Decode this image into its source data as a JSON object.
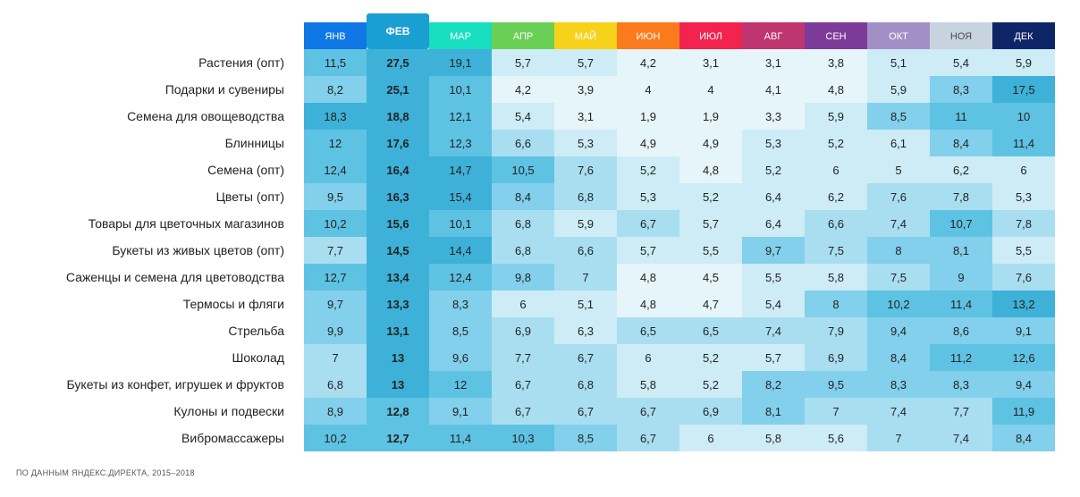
{
  "chart_data": {
    "type": "heatmap",
    "columns": [
      {
        "label": "ЯНВ",
        "color": "#0f77e6"
      },
      {
        "label": "ФЕВ",
        "color": "#1a9fd2",
        "highlight": true
      },
      {
        "label": "МАР",
        "color": "#17dfc0"
      },
      {
        "label": "АПР",
        "color": "#6ccf55"
      },
      {
        "label": "МАЙ",
        "color": "#f7d21a"
      },
      {
        "label": "ИЮН",
        "color": "#fb7a1b"
      },
      {
        "label": "ИЮЛ",
        "color": "#f2234f"
      },
      {
        "label": "АВГ",
        "color": "#bf356f"
      },
      {
        "label": "СЕН",
        "color": "#7d3b99"
      },
      {
        "label": "ОКТ",
        "color": "#a28fc6"
      },
      {
        "label": "НОЯ",
        "color": "#c7d3df",
        "dark_text": true
      },
      {
        "label": "ДЕК",
        "color": "#0e2568"
      }
    ],
    "rows": [
      {
        "label": "Растения (опт)",
        "values": [
          "11,5",
          "27,5",
          "19,1",
          "5,7",
          "5,7",
          "4,2",
          "3,1",
          "3,1",
          "3,8",
          "5,1",
          "5,4",
          "5,9"
        ]
      },
      {
        "label": "Подарки и сувениры",
        "values": [
          "8,2",
          "25,1",
          "10,1",
          "4,2",
          "3,9",
          "4",
          "4",
          "4,1",
          "4,8",
          "5,9",
          "8,3",
          "17,5"
        ]
      },
      {
        "label": "Семена для овощеводства",
        "values": [
          "18,3",
          "18,8",
          "12,1",
          "5,4",
          "3,1",
          "1,9",
          "1,9",
          "3,3",
          "5,9",
          "8,5",
          "11",
          "10"
        ]
      },
      {
        "label": "Блинницы",
        "values": [
          "12",
          "17,6",
          "12,3",
          "6,6",
          "5,3",
          "4,9",
          "4,9",
          "5,3",
          "5,2",
          "6,1",
          "8,4",
          "11,4"
        ]
      },
      {
        "label": "Семена (опт)",
        "values": [
          "12,4",
          "16,4",
          "14,7",
          "10,5",
          "7,6",
          "5,2",
          "4,8",
          "5,2",
          "6",
          "5",
          "6,2",
          "6"
        ]
      },
      {
        "label": "Цветы (опт)",
        "values": [
          "9,5",
          "16,3",
          "15,4",
          "8,4",
          "6,8",
          "5,3",
          "5,2",
          "6,4",
          "6,2",
          "7,6",
          "7,8",
          "5,3"
        ]
      },
      {
        "label": "Товары для цветочных магазинов",
        "values": [
          "10,2",
          "15,6",
          "10,1",
          "6,8",
          "5,9",
          "6,7",
          "5,7",
          "6,4",
          "6,6",
          "7,4",
          "10,7",
          "7,8"
        ]
      },
      {
        "label": "Букеты из живых цветов (опт)",
        "values": [
          "7,7",
          "14,5",
          "14,4",
          "6,8",
          "6,6",
          "5,7",
          "5,5",
          "9,7",
          "7,5",
          "8",
          "8,1",
          "5,5"
        ]
      },
      {
        "label": "Саженцы и семена для цветоводства",
        "values": [
          "12,7",
          "13,4",
          "12,4",
          "9,8",
          "7",
          "4,8",
          "4,5",
          "5,5",
          "5,8",
          "7,5",
          "9",
          "7,6"
        ]
      },
      {
        "label": "Термосы и фляги",
        "values": [
          "9,7",
          "13,3",
          "8,3",
          "6",
          "5,1",
          "4,8",
          "4,7",
          "5,4",
          "8",
          "10,2",
          "11,4",
          "13,2"
        ]
      },
      {
        "label": "Стрельба",
        "values": [
          "9,9",
          "13,1",
          "8,5",
          "6,9",
          "6,3",
          "6,5",
          "6,5",
          "7,4",
          "7,9",
          "9,4",
          "8,6",
          "9,1"
        ]
      },
      {
        "label": "Шоколад",
        "values": [
          "7",
          "13",
          "9,6",
          "7,7",
          "6,7",
          "6",
          "5,2",
          "5,7",
          "6,9",
          "8,4",
          "11,2",
          "12,6"
        ]
      },
      {
        "label": "Букеты из конфет, игрушек и фруктов",
        "values": [
          "6,8",
          "13",
          "12",
          "6,7",
          "6,8",
          "5,8",
          "5,2",
          "8,2",
          "9,5",
          "8,3",
          "8,3",
          "9,4"
        ]
      },
      {
        "label": "Кулоны и подвески",
        "values": [
          "8,9",
          "12,8",
          "9,1",
          "6,7",
          "6,7",
          "6,7",
          "6,9",
          "8,1",
          "7",
          "7,4",
          "7,7",
          "11,9"
        ]
      },
      {
        "label": "Вибромассажеры",
        "values": [
          "10,2",
          "12,7",
          "11,4",
          "10,3",
          "8,5",
          "6,7",
          "6",
          "5,8",
          "5,6",
          "7",
          "7,4",
          "8,4"
        ]
      }
    ],
    "color_scale": [
      "#e6f5fa",
      "#cdecf6",
      "#a9def1",
      "#82d0eb",
      "#5ec2e3",
      "#3eb1d9"
    ],
    "title": "",
    "xlabel": "",
    "ylabel": ""
  },
  "footer": {
    "source": "ПО ДАННЫМ ЯНДЕКС.ДИРЕКТА, 2015–2018"
  }
}
